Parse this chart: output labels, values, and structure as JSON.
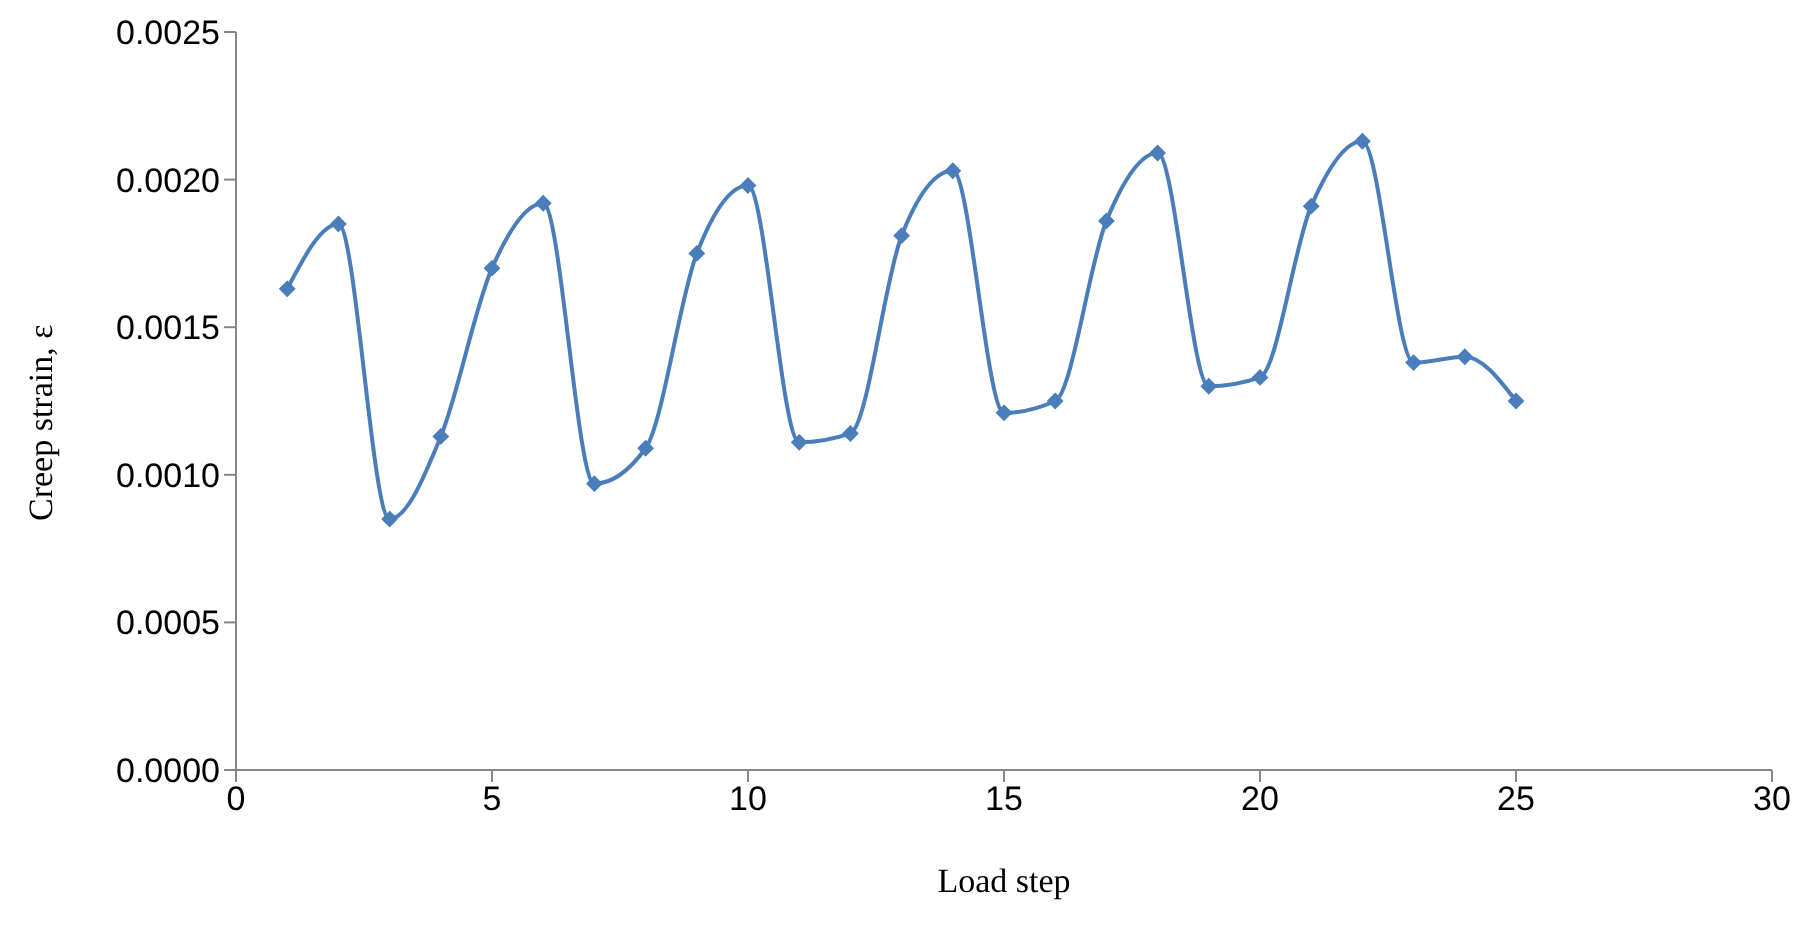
{
  "chart_data": {
    "type": "line",
    "xlabel": "Load step",
    "ylabel": "Creep strain, ε",
    "x": [
      1,
      2,
      3,
      4,
      5,
      6,
      7,
      8,
      9,
      10,
      11,
      12,
      13,
      14,
      15,
      16,
      17,
      18,
      19,
      20,
      21,
      22,
      23,
      24,
      25
    ],
    "series": [
      {
        "color": "#4a7ebb",
        "values": [
          0.00163,
          0.00185,
          0.00085,
          0.00113,
          0.0017,
          0.00192,
          0.00097,
          0.00109,
          0.00175,
          0.00198,
          0.00111,
          0.00114,
          0.00181,
          0.00203,
          0.00121,
          0.00125,
          0.00186,
          0.00209,
          0.0013,
          0.00133,
          0.00191,
          0.00213,
          0.00138,
          0.0014,
          0.00125
        ]
      }
    ],
    "xlim": [
      0,
      30
    ],
    "xticks": [
      0,
      5,
      10,
      15,
      20,
      25,
      30
    ],
    "ylim": [
      0,
      0.0025
    ],
    "yticks": [
      {
        "value": 0,
        "label": "0.0000"
      },
      {
        "value": 0.0005,
        "label": "0.0005"
      },
      {
        "value": 0.001,
        "label": "0.0010"
      },
      {
        "value": 0.0015,
        "label": "0.0015"
      },
      {
        "value": 0.002,
        "label": "0.0020"
      },
      {
        "value": 0.0025,
        "label": "0.0025"
      }
    ],
    "grid": false,
    "legend": false,
    "marker": "diamond",
    "line_style": "solid"
  }
}
